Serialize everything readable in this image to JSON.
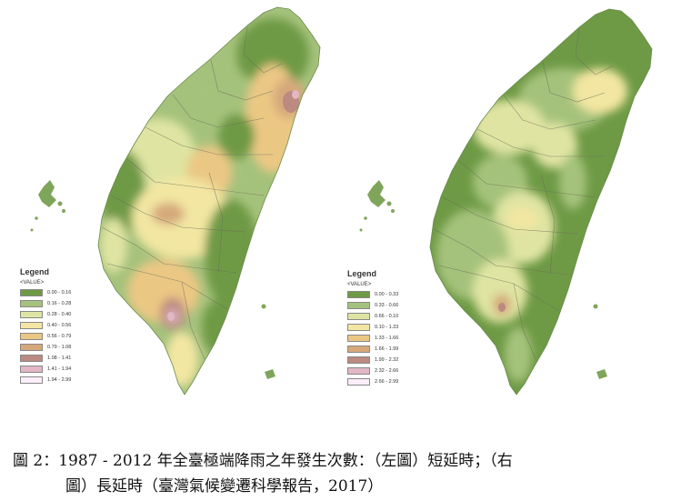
{
  "legend_left": {
    "title": "Legend",
    "subtitle": "<VALUE>",
    "items": [
      {
        "label": "0.00 - 0.16",
        "color": "#6e9a45"
      },
      {
        "label": "0.16 - 0.28",
        "color": "#a5c27c"
      },
      {
        "label": "0.28 - 0.40",
        "color": "#dfe4a2"
      },
      {
        "label": "0.40 - 0.56",
        "color": "#f2e6a2"
      },
      {
        "label": "0.56 - 0.79",
        "color": "#ebc784"
      },
      {
        "label": "0.79 - 1.08",
        "color": "#d5a87b"
      },
      {
        "label": "1.08 - 1.41",
        "color": "#bc8a80"
      },
      {
        "label": "1.41 - 1.94",
        "color": "#e2b7c6"
      },
      {
        "label": "1.94 - 2.99",
        "color": "#fbeefa"
      }
    ]
  },
  "legend_right": {
    "title": "Legend",
    "subtitle": "<VALUE>",
    "items": [
      {
        "label": "0.00 - 0.33",
        "color": "#6e9a45"
      },
      {
        "label": "0.33 - 0.66",
        "color": "#a5c27c"
      },
      {
        "label": "0.66 - 0.10",
        "color": "#dfe4a2"
      },
      {
        "label": "0.10 - 1.33",
        "color": "#f2e6a2"
      },
      {
        "label": "1.33 - 1.66",
        "color": "#ebc784"
      },
      {
        "label": "1.66 - 1.99",
        "color": "#d5a87b"
      },
      {
        "label": "1.99 - 2.32",
        "color": "#bc8a80"
      },
      {
        "label": "2.32 - 2.66",
        "color": "#e2b7c6"
      },
      {
        "label": "2.66 - 2.99",
        "color": "#fbeefa"
      }
    ]
  },
  "caption": {
    "line1": "圖 2：1987 - 2012 年全臺極端降雨之年發生次數：（左圖）短延時；（右",
    "line2": "圖）長延時（臺灣氣候變遷科學報告，2017）"
  }
}
